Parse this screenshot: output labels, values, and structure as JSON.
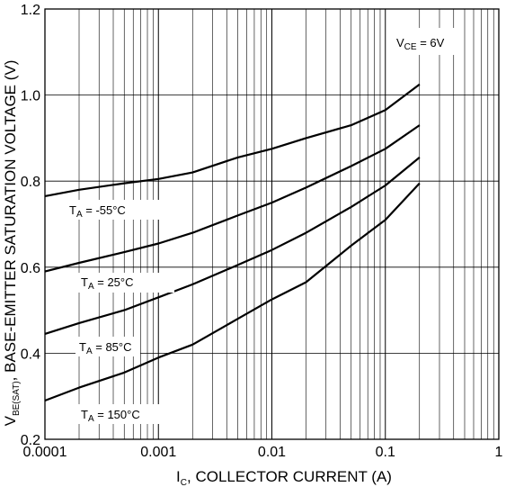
{
  "chart_data": {
    "type": "line",
    "title": "",
    "xlabel": {
      "main": "I",
      "sub": "C",
      "rest": ", COLLECTOR CURRENT (A)"
    },
    "ylabel": {
      "main": "V",
      "sub": "BE(SAT)",
      "rest": ", BASE-EMITTER SATURATION VOLTAGE (V)"
    },
    "x_scale": "log",
    "xlim": [
      0.0001,
      1
    ],
    "ylim": [
      0.2,
      1.2
    ],
    "grid": true,
    "x_tick_labels": [
      "0.0001",
      "0.001",
      "0.01",
      "0.1",
      "1"
    ],
    "y_tick_labels": [
      "0.2",
      "0.4",
      "0.6",
      "0.8",
      "1.0",
      "1.2"
    ],
    "annotation": {
      "main": "V",
      "sub": "CE",
      "rest": " = 6V"
    },
    "series": [
      {
        "name": {
          "main": "T",
          "sub": "A",
          "rest": " = -55°C"
        },
        "x": [
          0.0001,
          0.0002,
          0.0005,
          0.001,
          0.002,
          0.005,
          0.01,
          0.02,
          0.05,
          0.1,
          0.2
        ],
        "y": [
          0.765,
          0.78,
          0.795,
          0.805,
          0.82,
          0.855,
          0.875,
          0.9,
          0.93,
          0.965,
          1.025
        ]
      },
      {
        "name": {
          "main": "T",
          "sub": "A",
          "rest": " = 25°C"
        },
        "x": [
          0.0001,
          0.0002,
          0.0005,
          0.001,
          0.002,
          0.005,
          0.01,
          0.02,
          0.05,
          0.1,
          0.2
        ],
        "y": [
          0.59,
          0.61,
          0.635,
          0.655,
          0.68,
          0.72,
          0.75,
          0.785,
          0.835,
          0.875,
          0.93
        ]
      },
      {
        "name": {
          "main": "T",
          "sub": "A",
          "rest": " = 85°C"
        },
        "x": [
          0.0001,
          0.0002,
          0.0005,
          0.001,
          0.002,
          0.005,
          0.01,
          0.02,
          0.05,
          0.1,
          0.2
        ],
        "y": [
          0.445,
          0.47,
          0.5,
          0.53,
          0.56,
          0.605,
          0.64,
          0.68,
          0.74,
          0.79,
          0.855
        ]
      },
      {
        "name": {
          "main": "T",
          "sub": "A",
          "rest": " = 150°C"
        },
        "x": [
          0.0001,
          0.0002,
          0.0005,
          0.001,
          0.002,
          0.005,
          0.01,
          0.02,
          0.05,
          0.1,
          0.2
        ],
        "y": [
          0.29,
          0.32,
          0.355,
          0.39,
          0.42,
          0.48,
          0.525,
          0.565,
          0.65,
          0.71,
          0.795
        ]
      }
    ]
  }
}
